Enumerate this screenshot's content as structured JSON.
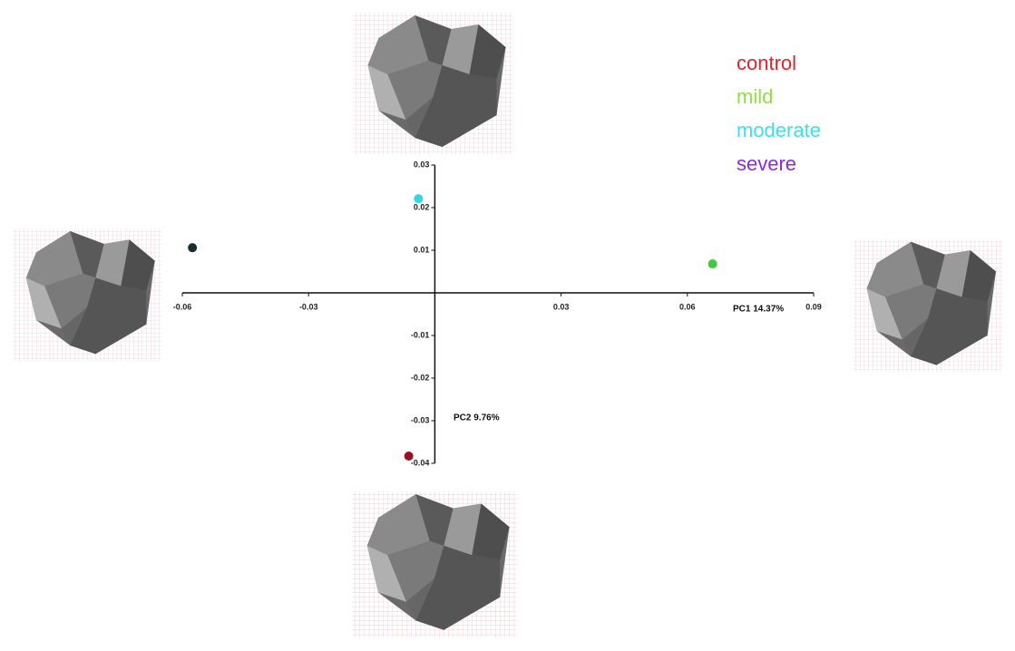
{
  "chart_data": {
    "type": "scatter",
    "x_label": "PC1 14.37%",
    "y_label": "PC2 9.76%",
    "xlim": [
      -0.06,
      0.09
    ],
    "xticks": [
      -0.06,
      -0.03,
      0.03,
      0.06,
      0.09
    ],
    "ylim": [
      -0.04,
      0.03
    ],
    "yticks": [
      0.03,
      0.02,
      0.01,
      -0.01,
      -0.02,
      -0.03,
      -0.04
    ],
    "series": [
      {
        "name": "control",
        "color": "#e8202a",
        "marker_color": "#9a1020",
        "x": [
          -0.0062
        ],
        "values": [
          -0.0383
        ]
      },
      {
        "name": "mild",
        "color": "#8ee040",
        "marker_color": "#3ccc3c",
        "x": [
          0.066
        ],
        "values": [
          0.0068
        ]
      },
      {
        "name": "moderate",
        "color": "#3de0e8",
        "marker_color": "#30d8e0",
        "x": [
          -0.0039
        ],
        "values": [
          0.0221
        ]
      },
      {
        "name": "severe",
        "color": "#8a2be2",
        "marker_color": "#143030",
        "x": [
          -0.0576
        ],
        "values": [
          0.0106
        ]
      }
    ]
  }
}
